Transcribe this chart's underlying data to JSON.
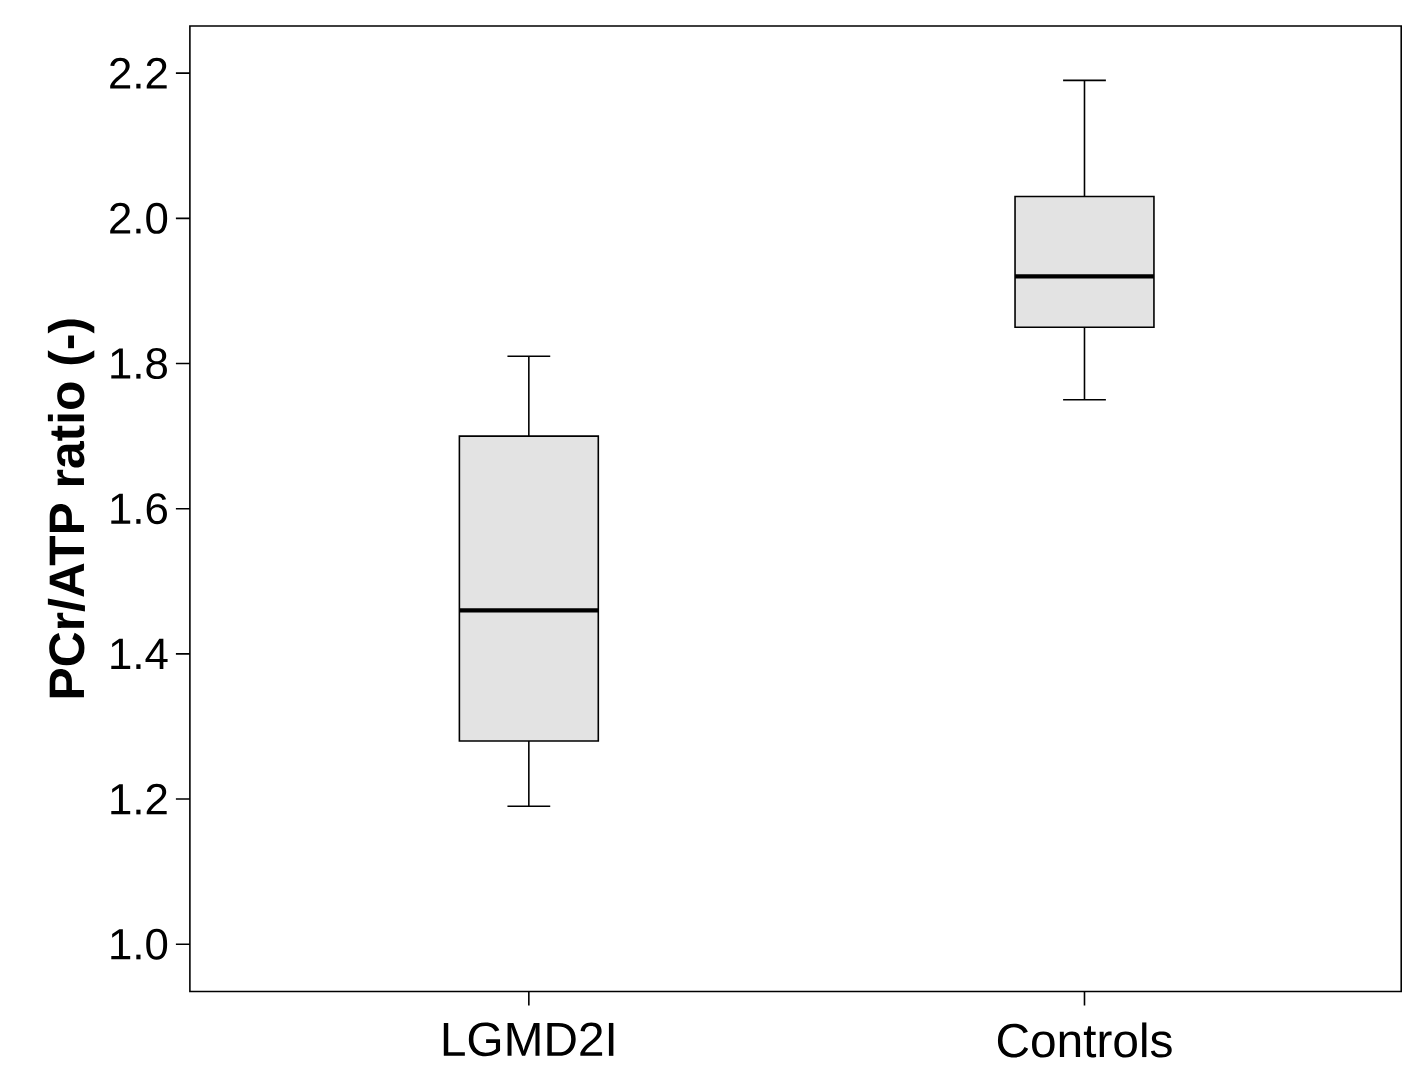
{
  "chart_data": {
    "type": "box",
    "ylabel": "PCr/ATP ratio (-)",
    "categories": [
      "LGMD2I",
      "Controls"
    ],
    "color": "#e3e3e3",
    "boxes": [
      {
        "low": 1.19,
        "q1": 1.28,
        "median": 1.46,
        "q3": 1.7,
        "high": 1.81
      },
      {
        "low": 1.75,
        "q1": 1.85,
        "median": 1.92,
        "q3": 2.03,
        "high": 2.19
      }
    ],
    "ylim": [
      0.935,
      2.265
    ],
    "yticks": [
      {
        "value": 1.0,
        "label": "1.0"
      },
      1.2,
      1.4,
      1.6,
      1.8,
      {
        "value": 2.0,
        "label": "2.0"
      },
      2.2
    ]
  }
}
